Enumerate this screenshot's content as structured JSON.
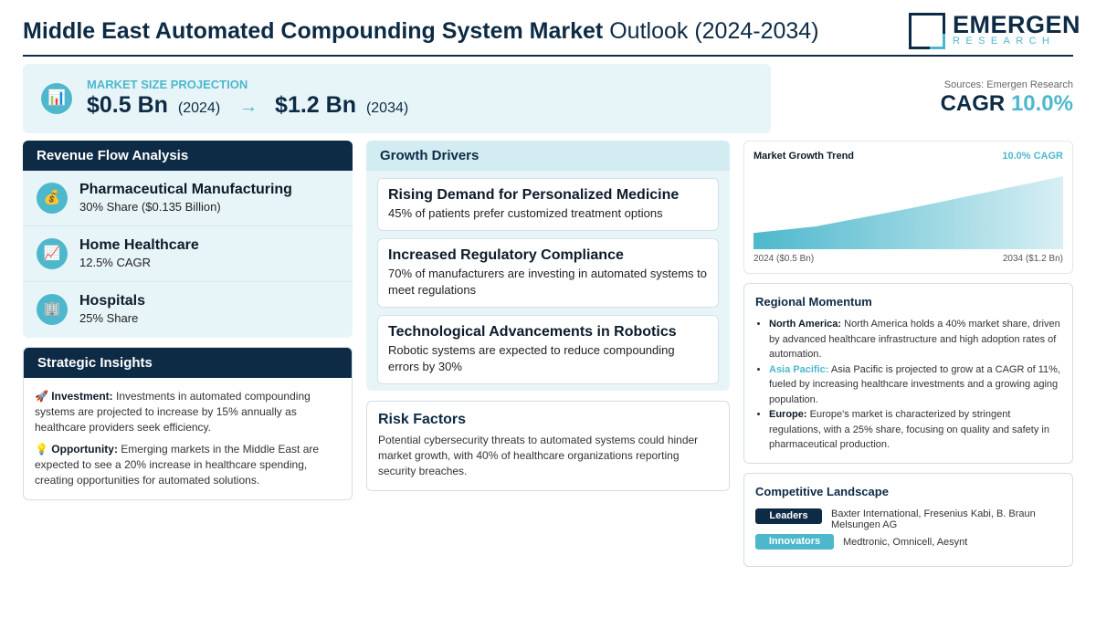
{
  "header": {
    "title_bold": "Middle East Automated Compounding System Market",
    "title_light": "Outlook (2024-2034)",
    "logo_word": "EMERGEN",
    "logo_sub": "RESEARCH"
  },
  "projection": {
    "label": "MARKET SIZE PROJECTION",
    "start_value": "$0.5 Bn",
    "start_year": "(2024)",
    "arrow": "→",
    "end_value": "$1.2 Bn",
    "end_year": "(2034)",
    "icon": "chart-icon"
  },
  "cagr": {
    "sources": "Sources: Emergen Research",
    "label": "CAGR",
    "value": "10.0%"
  },
  "revenue": {
    "title": "Revenue Flow Analysis",
    "items": [
      {
        "name": "Pharmaceutical Manufacturing",
        "sub": "30% Share ($0.135 Billion)",
        "icon": "money-bag-icon",
        "glyph": "💰"
      },
      {
        "name": "Home Healthcare",
        "sub": "12.5% CAGR",
        "icon": "trend-up-icon",
        "glyph": "📈"
      },
      {
        "name": "Hospitals",
        "sub": "25% Share",
        "icon": "building-icon",
        "glyph": "🏢"
      }
    ]
  },
  "strategic": {
    "title": "Strategic Insights",
    "investment": {
      "glyph": "🚀",
      "label": "Investment:",
      "text": "Investments in automated compounding systems are projected to increase by 15% annually as healthcare providers seek efficiency."
    },
    "opportunity": {
      "glyph": "💡",
      "label": "Opportunity:",
      "text": "Emerging markets in the Middle East are expected to see a 20% increase in healthcare spending, creating opportunities for automated solutions."
    }
  },
  "drivers": {
    "title": "Growth Drivers",
    "items": [
      {
        "title": "Rising Demand for Personalized Medicine",
        "text": "45% of patients prefer customized treatment options"
      },
      {
        "title": "Increased Regulatory Compliance",
        "text": "70% of manufacturers are investing in automated systems to meet regulations"
      },
      {
        "title": "Technological Advancements in Robotics",
        "text": "Robotic systems are expected to reduce compounding errors by 30%"
      }
    ]
  },
  "risk": {
    "title": "Risk Factors",
    "text": "Potential cybersecurity threats to automated systems could hinder market growth, with 40% of healthcare organizations reporting security breaches."
  },
  "trend": {
    "title": "Market Growth Trend",
    "cagr": "10.0% CAGR",
    "start_label": "2024 ($0.5 Bn)",
    "end_label": "2034 ($1.2 Bn)",
    "colors": {
      "fill_top": "#4db8cc",
      "fill_bottom": "#d8eff4"
    }
  },
  "chart_data": {
    "type": "area",
    "x": [
      2024,
      2026,
      2029,
      2034
    ],
    "values": [
      0.5,
      0.58,
      0.8,
      1.2
    ],
    "xlabel": "",
    "ylabel": ""
  },
  "regional": {
    "title": "Regional Momentum",
    "items": [
      {
        "label": "North America:",
        "text": "North America holds a 40% market share, driven by advanced healthcare infrastructure and high adoption rates of automation.",
        "accent": false
      },
      {
        "label": "Asia Pacific:",
        "text": "Asia Pacific is projected to grow at a CAGR of 11%, fueled by increasing healthcare investments and a growing aging population.",
        "accent": true
      },
      {
        "label": "Europe:",
        "text": "Europe's market is characterized by stringent regulations, with a 25% share, focusing on quality and safety in pharmaceutical production.",
        "accent": false
      }
    ]
  },
  "competitive": {
    "title": "Competitive Landscape",
    "leaders_label": "Leaders",
    "leaders": "Baxter International, Fresenius Kabi, B. Braun Melsungen AG",
    "innovators_label": "Innovators",
    "innovators": "Medtronic, Omnicell, Aesynt"
  },
  "colors": {
    "navy": "#0d2b45",
    "accent": "#4db8cc",
    "panel": "#e8f5f8"
  }
}
